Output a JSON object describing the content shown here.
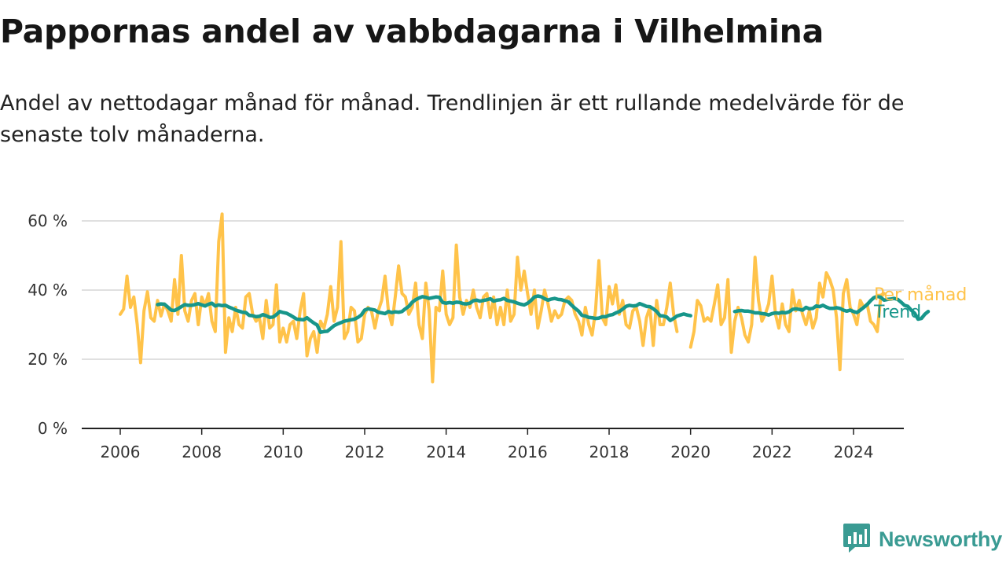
{
  "title": "Pappornas andel av vabbdagarna i Vilhelmina",
  "subtitle": "Andel av nettodagar månad för månad. Trendlinjen är ett rullande medelvärde för de senaste tolv månaderna.",
  "brand": {
    "name": "Newsworthy",
    "color": "#3a9b93",
    "icon": "newsworthy-logo-icon"
  },
  "colors": {
    "monthly": "#ffc34a",
    "trend": "#17968a",
    "axis": "#222222",
    "grid": "#d6d6d6"
  },
  "chart_data": {
    "type": "line",
    "title": "Pappornas andel av vabbdagarna i Vilhelmina",
    "xlabel": "",
    "ylabel": "",
    "x_unit": "year",
    "xlim": [
      2005,
      2025.2
    ],
    "ylim": [
      0,
      60
    ],
    "x_ticks": [
      2006,
      2008,
      2010,
      2012,
      2014,
      2016,
      2018,
      2020,
      2022,
      2024
    ],
    "y_ticks": [
      0,
      20,
      40,
      60
    ],
    "y_tick_labels": [
      "0 %",
      "20 %",
      "40 %",
      "60 %"
    ],
    "grid": true,
    "legend": "right-end-labels",
    "series": [
      {
        "name": "Per månad",
        "start": "2006-01",
        "values": [
          33,
          34.5,
          44,
          35,
          38,
          30,
          19,
          34,
          39.5,
          32,
          31,
          37,
          32.5,
          36,
          34,
          31,
          43,
          33,
          50,
          34,
          31,
          37,
          39,
          30,
          38,
          35.5,
          39,
          31,
          28,
          54,
          62,
          22,
          32,
          28,
          35,
          30,
          29,
          38,
          39,
          33,
          31,
          32,
          26,
          37,
          29,
          30,
          41.5,
          25,
          29,
          25,
          30,
          31,
          26,
          34,
          39,
          21,
          26,
          28,
          22,
          31,
          29,
          33,
          41,
          31,
          35,
          54,
          26,
          28,
          35,
          34,
          25,
          26,
          33,
          35,
          34,
          29,
          34,
          37,
          44,
          34,
          30,
          38,
          47,
          39,
          38,
          33,
          35,
          42,
          30,
          26,
          42,
          34,
          13.5,
          35,
          34,
          45.5,
          33,
          30,
          32,
          53,
          38,
          33,
          37,
          35,
          40,
          35,
          32,
          38,
          39,
          32,
          38,
          30,
          35,
          30,
          40,
          31,
          33,
          49.5,
          40,
          45.5,
          39,
          33,
          40,
          29,
          34,
          40,
          36,
          31,
          34,
          32,
          33,
          37,
          38,
          37,
          33,
          31,
          27,
          35,
          30,
          27,
          34,
          48.5,
          32,
          30,
          41,
          36,
          41.5,
          33,
          37,
          30,
          29,
          34,
          35,
          31,
          24,
          32,
          35,
          24,
          37,
          30,
          30,
          35,
          42,
          33,
          28,
          null,
          null,
          null,
          23.5,
          28,
          37,
          35.5,
          31,
          32,
          31,
          36,
          41.5,
          30,
          32,
          43,
          22,
          31,
          35,
          32,
          27,
          25,
          30,
          49.5,
          37,
          31,
          33,
          36,
          44,
          33,
          29,
          36,
          30,
          28,
          40,
          34,
          37,
          33,
          30,
          34,
          29,
          32,
          42,
          38,
          45,
          43,
          40,
          32,
          17,
          39,
          43,
          35,
          33,
          30,
          37,
          35,
          36,
          31,
          30,
          28,
          38,
          39
        ]
      },
      {
        "name": "Trend",
        "start": "2006-12",
        "values": [
          35.8,
          36,
          35.9,
          35.1,
          34.2,
          34.1,
          34.6,
          35.2,
          35.8,
          35.6,
          35.6,
          35.8,
          36.1,
          35.7,
          35.4,
          35.9,
          36.2,
          35.4,
          35.7,
          35.5,
          35.6,
          35.1,
          34.7,
          34.2,
          33.9,
          33.6,
          33.5,
          32.7,
          32.6,
          32.3,
          32.4,
          32.9,
          32.6,
          32.1,
          32.2,
          32.9,
          33.8,
          33.5,
          33.3,
          32.8,
          32.2,
          31.6,
          31.5,
          31.4,
          32,
          31.2,
          30.5,
          29.9,
          27.8,
          28,
          28.1,
          28.9,
          29.7,
          30.2,
          30.6,
          31,
          31.2,
          31.4,
          31.6,
          32.1,
          32.8,
          34.2,
          34.6,
          34.4,
          34.2,
          33.6,
          33.4,
          33.2,
          33.8,
          33.5,
          33.7,
          33.6,
          33.8,
          34.6,
          35.3,
          36.5,
          37.2,
          37.7,
          38.1,
          37.9,
          37.6,
          37.8,
          38,
          37.9,
          36.4,
          36.2,
          36.4,
          36.2,
          36.5,
          36.4,
          36.1,
          36,
          36.2,
          36.9,
          37.1,
          36.8,
          37,
          37.2,
          37.5,
          36.8,
          37.1,
          37.2,
          37.6,
          37,
          36.8,
          36.6,
          36.2,
          35.9,
          35.7,
          36.2,
          37,
          38,
          38.3,
          38.1,
          37.5,
          37.1,
          37.4,
          37.6,
          37.3,
          37.2,
          36.9,
          36.6,
          35.6,
          34.7,
          33.9,
          32.7,
          32.5,
          32.1,
          32,
          31.8,
          31.9,
          32.3,
          32.3,
          32.7,
          32.9,
          33.4,
          33.8,
          34.5,
          35.3,
          35.6,
          35.4,
          35.5,
          36.1,
          35.7,
          35.3,
          35.2,
          34.6,
          33.8,
          32.6,
          32.5,
          32.2,
          31.2,
          31.8,
          32.5,
          32.8,
          33.1,
          32.8,
          32.6,
          null,
          null,
          null,
          null,
          null,
          null,
          null,
          null,
          null,
          null,
          null,
          null,
          33.8,
          34,
          34.1,
          33.9,
          33.9,
          33.7,
          33.4,
          33.4,
          33.2,
          33.1,
          32.8,
          33.2,
          33.4,
          33.3,
          33.6,
          33.4,
          33.7,
          34.4,
          34.6,
          34.4,
          34.2,
          35,
          34.6,
          34.7,
          35.4,
          35.2,
          35.6,
          35.1,
          34.7,
          34.7,
          34.9,
          34.7,
          34.2,
          33.9,
          34.2,
          33.8,
          33.5,
          34.2,
          35,
          35.8,
          36.9,
          37.8,
          38.2,
          37.9,
          37.1,
          37.3,
          37.4,
          37.6,
          37.3,
          36.5,
          35.6,
          35.3,
          34.2,
          33.3,
          31.6,
          31.8,
          33,
          33.8
        ]
      }
    ]
  }
}
